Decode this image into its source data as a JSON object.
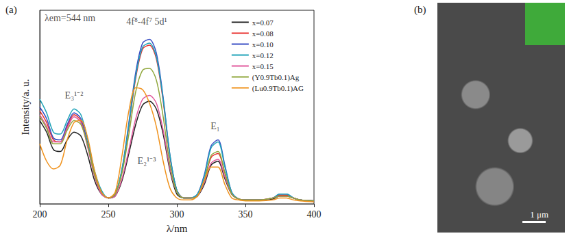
{
  "chart_data": {
    "type": "line",
    "panel_label": "(a)",
    "x_label": "λ/nm",
    "y_label": "Intensity/a. u.",
    "xlim": [
      200,
      400
    ],
    "xticks": [
      200,
      250,
      300,
      350,
      400
    ],
    "ylim": [
      0,
      100
    ],
    "tick_labels": "x",
    "grid": false,
    "legend": "upper right",
    "x": [
      200,
      205,
      210,
      215,
      220,
      225,
      230,
      235,
      240,
      245,
      250,
      255,
      260,
      265,
      270,
      275,
      280,
      285,
      290,
      295,
      300,
      305,
      310,
      315,
      320,
      325,
      330,
      335,
      340,
      345,
      350,
      360,
      370,
      375,
      380,
      385,
      390,
      400
    ],
    "series": [
      {
        "name": "x=0.07",
        "color": "#222222",
        "values": [
          43,
          37,
          28,
          27,
          33,
          37,
          35,
          25,
          12,
          5,
          3,
          4,
          12,
          26,
          41,
          51,
          53,
          49,
          36,
          17,
          5,
          3,
          3,
          4,
          10,
          20,
          22,
          13,
          5,
          2.5,
          2,
          2,
          2.5,
          4,
          4,
          3,
          2,
          1.5
        ]
      },
      {
        "name": "x=0.08",
        "color": "#e8312f",
        "values": [
          48,
          42,
          33,
          32,
          40,
          46,
          43,
          30,
          15,
          6,
          3,
          5,
          17,
          40,
          65,
          80,
          82,
          75,
          53,
          24,
          7,
          3,
          3,
          4,
          12,
          24,
          26,
          16,
          5,
          2.5,
          2,
          2,
          3,
          4.5,
          4.5,
          3,
          2,
          1.5
        ]
      },
      {
        "name": "x=0.10",
        "color": "#3a4fc4",
        "values": [
          50,
          44,
          34,
          33,
          41,
          47,
          44,
          31,
          16,
          6,
          3,
          5,
          18,
          42,
          68,
          83,
          85,
          78,
          55,
          25,
          7,
          3,
          3,
          5,
          15,
          30,
          33,
          20,
          6,
          2.5,
          2,
          2,
          3,
          5,
          5,
          3,
          2,
          1.5
        ]
      },
      {
        "name": "x=0.12",
        "color": "#1fa3b8",
        "values": [
          54,
          47,
          37,
          36,
          43,
          49,
          46,
          33,
          17,
          7,
          3,
          5,
          18,
          41,
          66,
          81,
          83,
          76,
          54,
          25,
          7,
          3,
          3,
          5,
          14,
          29,
          32,
          19,
          6,
          2.5,
          2,
          2,
          3,
          5,
          5,
          3,
          2,
          1.5
        ]
      },
      {
        "name": "x=0.15",
        "color": "#e0589c",
        "values": [
          46,
          40,
          32,
          32,
          39,
          45,
          42,
          29,
          14,
          5,
          3,
          4,
          13,
          28,
          44,
          54,
          56,
          52,
          38,
          18,
          6,
          3,
          3,
          4,
          11,
          21,
          23,
          14,
          5,
          2.5,
          2,
          2,
          3,
          4,
          4,
          3,
          2,
          1.5
        ]
      },
      {
        "name": "(Y0.9Tb0.1)Ag",
        "color": "#8fa63a",
        "values": [
          45,
          39,
          31,
          31,
          38,
          43,
          41,
          30,
          15,
          6,
          3,
          5,
          16,
          36,
          58,
          69,
          70,
          64,
          45,
          20,
          6,
          3,
          3,
          4,
          12,
          25,
          27,
          16,
          5,
          2.5,
          2,
          2,
          3,
          4,
          4,
          3,
          2,
          1.5
        ]
      },
      {
        "name": "(Lu0.9Tb0.1)AG",
        "color": "#f0921c",
        "values": [
          31,
          22,
          18,
          20,
          33,
          42,
          43,
          34,
          17,
          6,
          3,
          6,
          25,
          48,
          60,
          59,
          52,
          40,
          22,
          8,
          3,
          2,
          2,
          4,
          12,
          19,
          19,
          10,
          3,
          2,
          1.5,
          1.5,
          2,
          3,
          3,
          2,
          1.5,
          1
        ]
      }
    ],
    "annotations": [
      {
        "text": "λem=544 nm",
        "x": 222,
        "y": 96
      },
      {
        "text": "4f⁸-4f⁷ 5d¹",
        "x": 278,
        "y": 94
      },
      {
        "text": "E₃¹⁻²",
        "x": 225,
        "y": 56
      },
      {
        "text": "E₂¹⁻³",
        "x": 278,
        "y": 22
      },
      {
        "text": "E₁",
        "x": 328,
        "y": 40
      }
    ]
  },
  "image_panel": {
    "label": "(b)",
    "scale_bar": "1 μm"
  }
}
